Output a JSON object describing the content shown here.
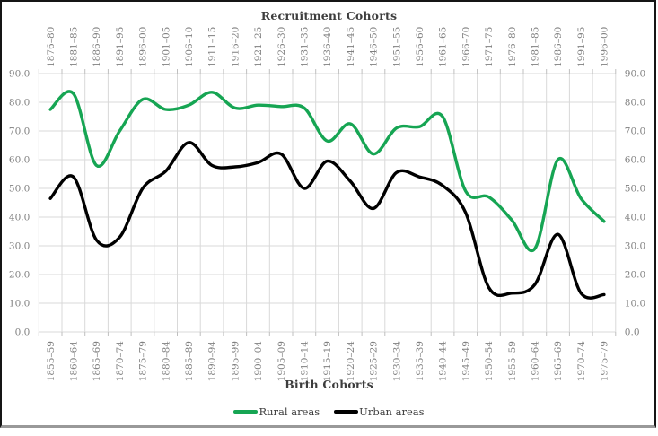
{
  "figure": {
    "top_axis_title": "Recruitment Cohorts",
    "bottom_axis_title": "Birth Cohorts"
  },
  "legend": {
    "items": [
      {
        "label": "Rural areas",
        "color": "#16A553"
      },
      {
        "label": "Urban areas",
        "color": "#000000"
      }
    ]
  },
  "colors": {
    "gridline": "#d9d9d9",
    "tick": "#bfbfbf",
    "axis_label": "#7f7f7f",
    "title": "#3d3d3d",
    "rural": "#16A553",
    "urban": "#000000"
  },
  "chart_data": {
    "type": "line",
    "line_style": "smooth",
    "grid": true,
    "legend_position": "bottom",
    "top_axis": {
      "title": "Recruitment Cohorts",
      "labels": [
        "1876–80",
        "1881–85",
        "1886–90",
        "1891–95",
        "1896–00",
        "1901–05",
        "1906–10",
        "1911–15",
        "1916–20",
        "1921–25",
        "1926–30",
        "1931–35",
        "1936–40",
        "1941–45",
        "1946–50",
        "1951–55",
        "1956–60",
        "1961–65",
        "1966–70",
        "1971–75",
        "1976–80",
        "1981–85",
        "1986–90",
        "1991–95",
        "1996–00"
      ]
    },
    "bottom_axis": {
      "title": "Birth Cohorts",
      "labels": [
        "1855–59",
        "1860–64",
        "1865–69",
        "1870–74",
        "1875–79",
        "1880–84",
        "1885–89",
        "1890–94",
        "1895–99",
        "1900–04",
        "1905–09",
        "1910–14",
        "1915–19",
        "1920–24",
        "1925–29",
        "1930–34",
        "1935–39",
        "1940–44",
        "1945–49",
        "1950–54",
        "1955–59",
        "1960–64",
        "1965–69",
        "1970–74",
        "1975–79"
      ]
    },
    "y_axis": {
      "min": 0,
      "max": 90,
      "step": 10,
      "sides": "both",
      "tick_labels": [
        "90.0",
        "80.0",
        "70.0",
        "60.0",
        "50.0",
        "40.0",
        "30.0",
        "20.0",
        "10.0",
        "0.0"
      ]
    },
    "series": [
      {
        "name": "Rural areas",
        "color": "#16A553",
        "values": [
          77.5,
          83,
          58,
          70,
          81,
          77.5,
          79,
          83.5,
          78,
          79,
          78.5,
          78,
          66.5,
          72.5,
          62,
          71,
          71.5,
          75,
          49,
          47,
          39,
          29,
          60,
          46.5,
          38.5
        ]
      },
      {
        "name": "Urban areas",
        "color": "#000000",
        "values": [
          46.5,
          54,
          32,
          33,
          50,
          56,
          66,
          58,
          57.5,
          59,
          62,
          50,
          59.5,
          52.5,
          43,
          55.5,
          54,
          51,
          41.5,
          15.5,
          13.5,
          16.5,
          34,
          13.5,
          13
        ]
      }
    ]
  }
}
